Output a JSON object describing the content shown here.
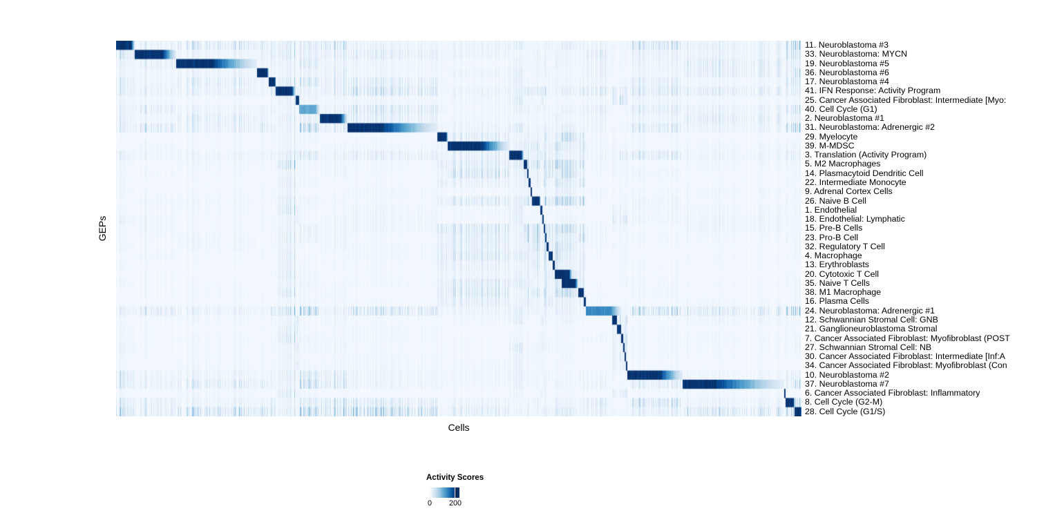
{
  "axis": {
    "x_label": "Cells",
    "y_label": "GEPs"
  },
  "legend": {
    "title": "Activity Scores",
    "min_label": "0",
    "max_label": "200"
  },
  "chart_data": {
    "type": "heatmap",
    "title": "",
    "xlabel": "Cells",
    "ylabel": "GEPs",
    "grid": false,
    "legend_position": "bottom-left",
    "colorbar": {
      "title": "Activity Scores",
      "range": [
        0,
        200
      ],
      "ticks": [
        0,
        200
      ],
      "tick_fraction_of_bar": 0.86
    },
    "colormap": [
      "#f7fbff",
      "#deebf7",
      "#c6dbef",
      "#9ecae1",
      "#6baed6",
      "#4292c6",
      "#2171b5",
      "#08519c",
      "#08306b"
    ],
    "n_rows": 41,
    "n_cols": 992,
    "rows": [
      {
        "label": "11. Neuroblastoma #3",
        "family": "nb",
        "peak": 1.0
      },
      {
        "label": "33. Neuroblastoma: MYCN",
        "family": "nb",
        "peak": 1.0
      },
      {
        "label": "19. Neuroblastoma #5",
        "family": "nb",
        "peak": 1.0
      },
      {
        "label": "36. Neuroblastoma #6",
        "family": "nb",
        "peak": 1.0
      },
      {
        "label": "17. Neuroblastoma #4",
        "family": "nb",
        "peak": 1.0
      },
      {
        "label": "41. IFN Response: Activity Program",
        "family": "prog",
        "peak": 1.0
      },
      {
        "label": "25. Cancer Associated Fibroblast: Intermediate [Myo:",
        "family": "stromal",
        "peak": 1.0
      },
      {
        "label": "40. Cell Cycle (G1)",
        "family": "cc",
        "peak": 0.52
      },
      {
        "label": "2. Neuroblastoma #1",
        "family": "nb",
        "peak": 1.0
      },
      {
        "label": "31. Neuroblastoma: Adrenergic #2",
        "family": "nb",
        "peak": 1.0
      },
      {
        "label": "29. Myelocyte",
        "family": "immune",
        "peak": 1.0
      },
      {
        "label": "39. M-MDSC",
        "family": "immune",
        "peak": 1.0
      },
      {
        "label": "3. Translation (Activity Program)",
        "family": "prog",
        "peak": 1.0
      },
      {
        "label": "5. M2 Macrophages",
        "family": "immune",
        "peak": 1.0
      },
      {
        "label": "14. Plasmacytoid Dendritic Cell",
        "family": "immune",
        "peak": 1.0
      },
      {
        "label": "22. Intermediate Monocyte",
        "family": "immune",
        "peak": 1.0
      },
      {
        "label": "9. Adrenal Cortex Cells",
        "family": "other",
        "peak": 1.0
      },
      {
        "label": "26. Naive B Cell",
        "family": "immune",
        "peak": 1.0
      },
      {
        "label": "1. Endothelial",
        "family": "endo",
        "peak": 1.0
      },
      {
        "label": "18. Endothelial: Lymphatic",
        "family": "endo",
        "peak": 1.0
      },
      {
        "label": "15. Pre-B Cells",
        "family": "immune",
        "peak": 1.0
      },
      {
        "label": "23. Pro-B Cell",
        "family": "immune",
        "peak": 1.0
      },
      {
        "label": "32. Regulatory T Cell",
        "family": "immune",
        "peak": 1.0
      },
      {
        "label": "4. Macrophage",
        "family": "immune",
        "peak": 1.0
      },
      {
        "label": "13. Erythroblasts",
        "family": "immune",
        "peak": 1.0
      },
      {
        "label": "20. Cytotoxic T Cell",
        "family": "immune",
        "peak": 1.0,
        "fade_to": 660
      },
      {
        "label": "35. Naive T Cells",
        "family": "immune",
        "peak": 1.0
      },
      {
        "label": "38. M1 Macrophage",
        "family": "immune",
        "peak": 1.0
      },
      {
        "label": "16. Plasma Cells",
        "family": "immune",
        "peak": 1.0
      },
      {
        "label": "24. Neuroblastoma: Adrenergic #1",
        "family": "nb",
        "peak": 0.65,
        "fade_to": 732
      },
      {
        "label": "12. Schwannian Stromal Cell: GNB",
        "family": "stromal",
        "peak": 1.0
      },
      {
        "label": "21. Ganglioneuroblastoma Stromal",
        "family": "stromal",
        "peak": 1.0
      },
      {
        "label": "7. Cancer Associated Fibroblast: Myofibroblast (POST",
        "family": "stromal",
        "peak": 1.0
      },
      {
        "label": "27. Schwannian Stromal Cell: NB",
        "family": "stromal",
        "peak": 1.0
      },
      {
        "label": "30. Cancer Associated Fibroblast: Intermediate [Inf:A",
        "family": "stromal",
        "peak": 1.0
      },
      {
        "label": "34. Cancer Associated Fibroblast: Myofibroblast (Con",
        "family": "stromal",
        "peak": 1.0
      },
      {
        "label": "10. Neuroblastoma #2",
        "family": "nb",
        "peak": 1.0
      },
      {
        "label": "37. Neuroblastoma #7",
        "family": "nb",
        "peak": 1.0
      },
      {
        "label": "6. Cancer Associated Fibroblast: Inflammatory",
        "family": "stromal",
        "peak": 1.0
      },
      {
        "label": "8. Cell Cycle (G2-M)",
        "family": "cc",
        "peak": 1.0
      },
      {
        "label": "28. Cell Cycle (G1/S)",
        "family": "cc",
        "peak": 1.0
      }
    ],
    "col_group_bounds": [
      0,
      27,
      87,
      204,
      221,
      231,
      260,
      265,
      295,
      335,
      465,
      480,
      569,
      590,
      595,
      597,
      600,
      602,
      614,
      617,
      619,
      621,
      623,
      626,
      632,
      635,
      645,
      669,
      677,
      680,
      718,
      725,
      731,
      734,
      736,
      738,
      740,
      820,
      967,
      969,
      982,
      992
    ]
  }
}
